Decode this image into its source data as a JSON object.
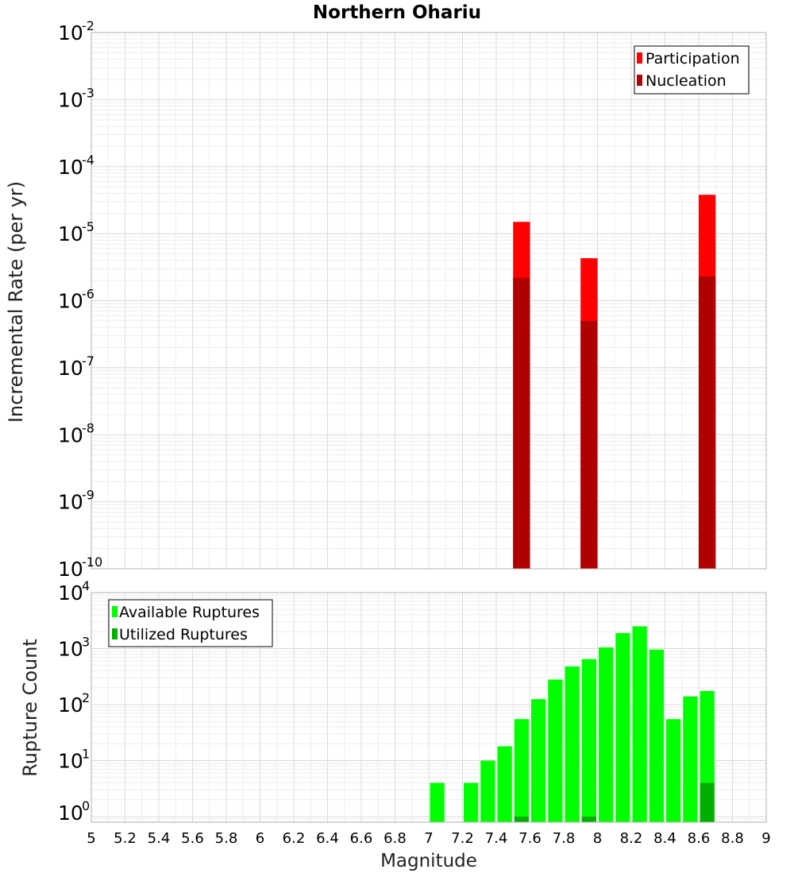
{
  "chart_data": [
    {
      "type": "bar",
      "title": "Northern Ohariu",
      "ylabel": "Incremental Rate (per yr)",
      "xlabel": "",
      "yscale": "log",
      "ylim_exp": [
        -10,
        -2
      ],
      "xlim": [
        5,
        9
      ],
      "bar_width": 0.1,
      "legend_position": "top-right",
      "grid": true,
      "y_ticks": [
        {
          "base": "10",
          "exp": "-10",
          "value_exp": -10
        },
        {
          "base": "10",
          "exp": "-9",
          "value_exp": -9
        },
        {
          "base": "10",
          "exp": "-8",
          "value_exp": -8
        },
        {
          "base": "10",
          "exp": "-7",
          "value_exp": -7
        },
        {
          "base": "10",
          "exp": "-6",
          "value_exp": -6
        },
        {
          "base": "10",
          "exp": "-5",
          "value_exp": -5
        },
        {
          "base": "10",
          "exp": "-4",
          "value_exp": -4
        },
        {
          "base": "10",
          "exp": "-3",
          "value_exp": -3
        },
        {
          "base": "10",
          "exp": "-2",
          "value_exp": -2
        }
      ],
      "series": [
        {
          "name": "Participation",
          "color": "#ff0000",
          "x": [
            7.55,
            7.95,
            8.65
          ],
          "values": [
            1.5e-05,
            4.3e-06,
            3.8e-05
          ]
        },
        {
          "name": "Nucleation",
          "color": "#b00000",
          "x": [
            7.55,
            7.95,
            8.65
          ],
          "values": [
            2.2e-06,
            5e-07,
            2.3e-06
          ]
        }
      ]
    },
    {
      "type": "bar",
      "title": "",
      "ylabel": "Rupture Count",
      "xlabel": "Magnitude",
      "yscale": "log",
      "ylim_exp": [
        -0.1,
        4
      ],
      "xlim": [
        5,
        9
      ],
      "bar_width": 0.1,
      "legend_position": "top-left",
      "grid": true,
      "x_ticks": [
        "5",
        "5.2",
        "5.4",
        "5.6",
        "5.8",
        "6",
        "6.2",
        "6.4",
        "6.6",
        "6.8",
        "7",
        "7.2",
        "7.4",
        "7.6",
        "7.8",
        "8",
        "8.2",
        "8.4",
        "8.6",
        "8.8",
        "9"
      ],
      "y_ticks": [
        {
          "base": "10",
          "exp": "0",
          "value_exp": 0
        },
        {
          "base": "10",
          "exp": "1",
          "value_exp": 1
        },
        {
          "base": "10",
          "exp": "2",
          "value_exp": 2
        },
        {
          "base": "10",
          "exp": "3",
          "value_exp": 3
        },
        {
          "base": "10",
          "exp": "4",
          "value_exp": 4
        }
      ],
      "series": [
        {
          "name": "Available Ruptures",
          "color": "#00ff00",
          "x": [
            7.05,
            7.25,
            7.35,
            7.45,
            7.55,
            7.65,
            7.75,
            7.85,
            7.95,
            8.05,
            8.15,
            8.25,
            8.35,
            8.45,
            8.55,
            8.65
          ],
          "values": [
            4,
            4,
            10,
            18,
            55,
            125,
            280,
            480,
            650,
            1050,
            1900,
            2500,
            960,
            55,
            140,
            175
          ]
        },
        {
          "name": "Utilized Ruptures",
          "color": "#00b000",
          "x": [
            7.55,
            7.95,
            8.65
          ],
          "values": [
            1,
            1,
            4
          ]
        }
      ]
    }
  ]
}
